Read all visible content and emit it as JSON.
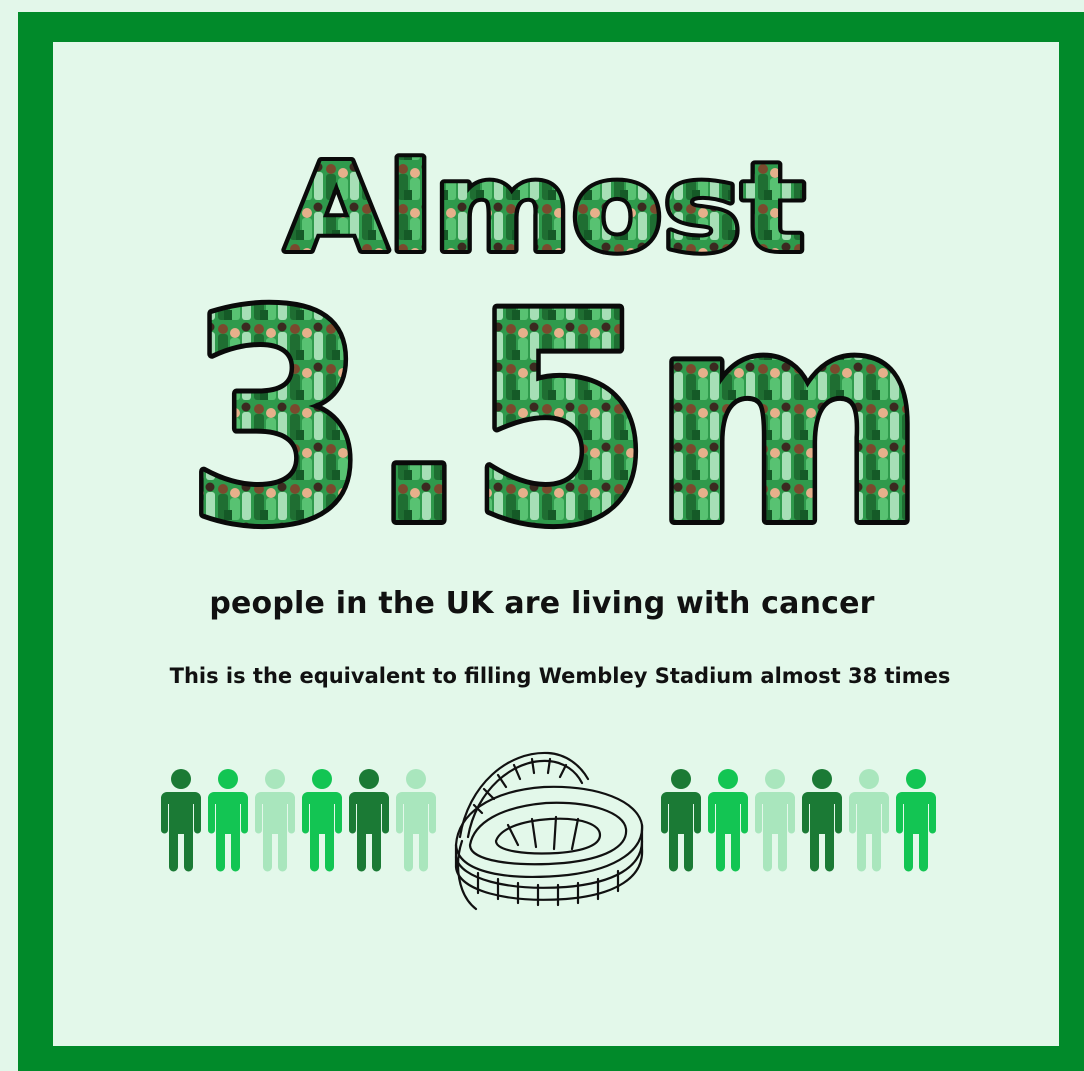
{
  "headline": {
    "top_word": "Almost",
    "figure": "3.5m"
  },
  "subtitle": "people in the UK are living with cancer",
  "caption": "This is the equivalent to filling Wembley Stadium almost 38 times",
  "icons": {
    "left_people": [
      {
        "name": "person-icon",
        "color": "#1b7a35"
      },
      {
        "name": "person-icon",
        "color": "#13c553"
      },
      {
        "name": "person-icon",
        "color": "#a9e6bd"
      },
      {
        "name": "person-icon",
        "color": "#13c553"
      },
      {
        "name": "person-icon",
        "color": "#1b7a35"
      },
      {
        "name": "person-icon",
        "color": "#a9e6bd"
      }
    ],
    "right_people": [
      {
        "name": "person-icon",
        "color": "#1b7a35"
      },
      {
        "name": "person-icon",
        "color": "#13c553"
      },
      {
        "name": "person-icon",
        "color": "#a9e6bd"
      },
      {
        "name": "person-icon",
        "color": "#1b7a35"
      },
      {
        "name": "person-icon",
        "color": "#a9e6bd"
      },
      {
        "name": "person-icon",
        "color": "#13c553"
      }
    ],
    "center": "wembley-stadium-icon"
  },
  "colors": {
    "border": "#018a2a",
    "background": "#e3f8ea",
    "text": "#111111",
    "dark_green": "#1b7a35",
    "bright_green": "#13c553",
    "pale_green": "#a9e6bd"
  }
}
